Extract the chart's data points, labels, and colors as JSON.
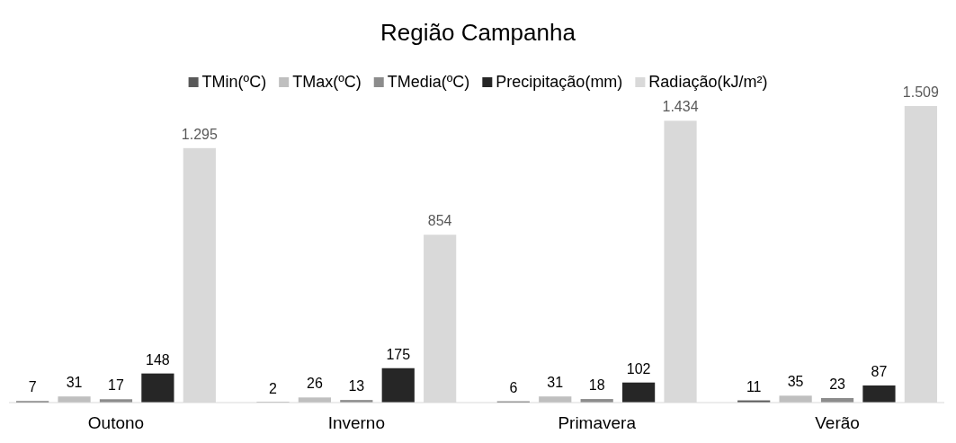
{
  "chart_data": {
    "type": "bar",
    "title": "Região Campanha",
    "categories": [
      "Outono",
      "Inverno",
      "Primavera",
      "Verão"
    ],
    "legend": "top",
    "series": [
      {
        "name": "TMin(ºC)",
        "color": "#595959",
        "values": [
          7,
          2,
          6,
          11
        ],
        "value_labels": [
          "7",
          "2",
          "6",
          "11"
        ]
      },
      {
        "name": "TMax(ºC)",
        "color": "#bfbfbf",
        "values": [
          31,
          26,
          31,
          35
        ],
        "value_labels": [
          "31",
          "26",
          "31",
          "35"
        ]
      },
      {
        "name": "TMedia(ºC)",
        "color": "#8c8c8c",
        "values": [
          17,
          13,
          18,
          23
        ],
        "value_labels": [
          "17",
          "13",
          "18",
          "23"
        ]
      },
      {
        "name": "Precipitação(mm)",
        "color": "#262626",
        "values": [
          148,
          175,
          102,
          87
        ],
        "value_labels": [
          "148",
          "175",
          "102",
          "87"
        ]
      },
      {
        "name": "Radiação(kJ/m²)",
        "color": "#d9d9d9",
        "values": [
          1295,
          854,
          1434,
          1509
        ],
        "value_labels": [
          "1.295",
          "854",
          "1.434",
          "1.509"
        ]
      }
    ]
  }
}
